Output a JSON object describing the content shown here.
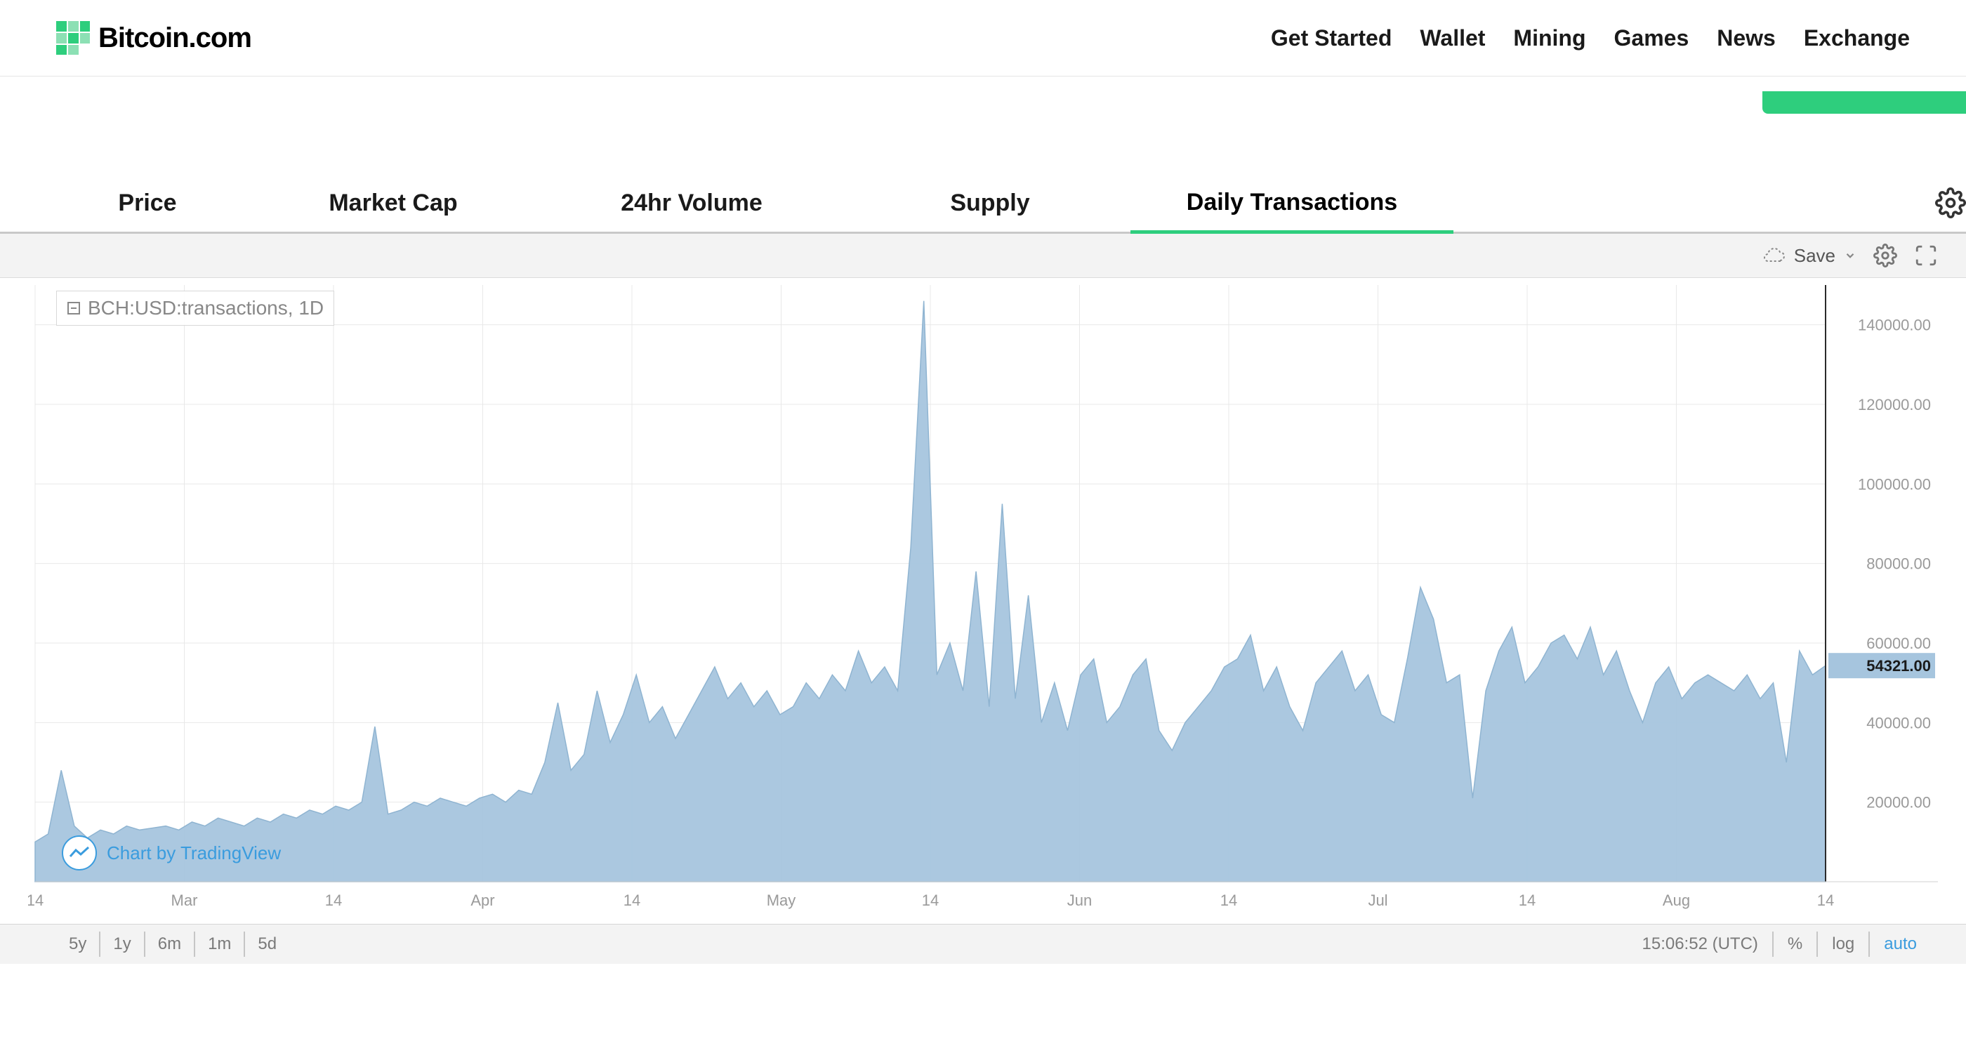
{
  "header": {
    "brand": "Bitcoin.com",
    "nav": [
      "Get Started",
      "Wallet",
      "Mining",
      "Games",
      "News",
      "Exchange"
    ]
  },
  "tabs": {
    "items": [
      "Price",
      "Market Cap",
      "24hr Volume",
      "Supply",
      "Daily Transactions"
    ],
    "active_index": 4
  },
  "toolbar": {
    "save_label": "Save"
  },
  "chart": {
    "type": "area",
    "legend": "BCH:USD:transactions, 1D",
    "attribution": "Chart by TradingView",
    "area_color": "#a6c5de",
    "area_stroke": "#8fb4d1",
    "grid_color": "#e8e8e8",
    "axis_color": "#d0d0d0",
    "background": "#ffffff",
    "y": {
      "min": 0,
      "max": 150000,
      "ticks": [
        20000,
        40000,
        60000,
        80000,
        100000,
        120000,
        140000
      ],
      "tick_labels": [
        "20000.00",
        "40000.00",
        "60000.00",
        "80000.00",
        "100000.00",
        "120000.00",
        "140000.00"
      ],
      "last_value": 54321.0,
      "last_value_label": "54321.00",
      "badge_bg": "#a6c5de",
      "label_color": "#9a9a9a",
      "fontsize": 22
    },
    "x": {
      "ticks": [
        "14",
        "Mar",
        "14",
        "Apr",
        "14",
        "May",
        "14",
        "Jun",
        "14",
        "Jul",
        "14",
        "Aug",
        "14"
      ],
      "label_color": "#9a9a9a",
      "fontsize": 22
    },
    "series": [
      10000,
      12000,
      28000,
      14000,
      11000,
      13000,
      12000,
      14000,
      13000,
      13500,
      14000,
      13000,
      15000,
      14000,
      16000,
      15000,
      14000,
      16000,
      15000,
      17000,
      16000,
      18000,
      17000,
      19000,
      18000,
      20000,
      39000,
      17000,
      18000,
      20000,
      19000,
      21000,
      20000,
      19000,
      21000,
      22000,
      20000,
      23000,
      22000,
      30000,
      45000,
      28000,
      32000,
      48000,
      35000,
      42000,
      52000,
      40000,
      44000,
      36000,
      42000,
      48000,
      54000,
      46000,
      50000,
      44000,
      48000,
      42000,
      44000,
      50000,
      46000,
      52000,
      48000,
      58000,
      50000,
      54000,
      48000,
      84000,
      146000,
      52000,
      60000,
      48000,
      78000,
      44000,
      95000,
      46000,
      72000,
      40000,
      50000,
      38000,
      52000,
      56000,
      40000,
      44000,
      52000,
      56000,
      38000,
      33000,
      40000,
      44000,
      48000,
      54000,
      56000,
      62000,
      48000,
      54000,
      44000,
      38000,
      50000,
      54000,
      58000,
      48000,
      52000,
      42000,
      40000,
      56000,
      74000,
      66000,
      50000,
      52000,
      21000,
      48000,
      58000,
      64000,
      50000,
      54000,
      60000,
      62000,
      56000,
      64000,
      52000,
      58000,
      48000,
      40000,
      50000,
      54000,
      46000,
      50000,
      52000,
      50000,
      48000,
      52000,
      46000,
      50000,
      30000,
      58000,
      52000,
      54321
    ]
  },
  "bottom": {
    "ranges": [
      "5y",
      "1y",
      "6m",
      "1m",
      "5d"
    ],
    "time": "15:06:52 (UTC)",
    "pct": "%",
    "log": "log",
    "auto": "auto"
  },
  "colors": {
    "accent_green": "#2ece7d",
    "link_blue": "#3a9cde"
  }
}
